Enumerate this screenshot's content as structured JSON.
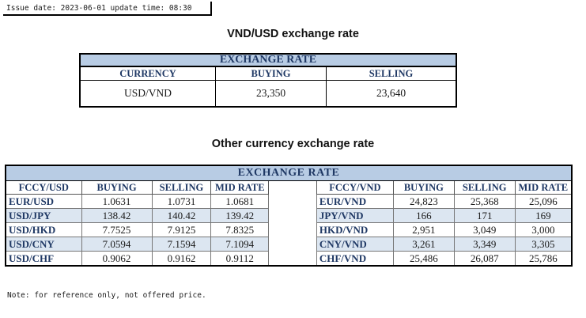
{
  "header": {
    "issue_text": "Issue date: 2023-06-01 update time: 08:30"
  },
  "vnd_usd": {
    "title": "VND/USD exchange rate",
    "table_header": "EXCHANGE RATE",
    "col_currency": "CURRENCY",
    "col_buying": "BUYING",
    "col_selling": "SELLING",
    "currency": "USD/VND",
    "buying": "23,350",
    "selling": "23,640"
  },
  "other": {
    "title": "Other currency exchange rate",
    "table_header": "EXCHANGE RATE",
    "left_columns": [
      "FCCY/USD",
      "BUYING",
      "SELLING",
      "MID RATE"
    ],
    "right_columns": [
      "FCCY/VND",
      "BUYING",
      "SELLING",
      "MID RATE"
    ],
    "rows": [
      {
        "left": [
          "EUR/USD",
          "1.0631",
          "1.0731",
          "1.0681"
        ],
        "right": [
          "EUR/VND",
          "24,823",
          "25,368",
          "25,096"
        ]
      },
      {
        "left": [
          "USD/JPY",
          "138.42",
          "140.42",
          "139.42"
        ],
        "right": [
          "JPY/VND",
          "166",
          "171",
          "169"
        ]
      },
      {
        "left": [
          "USD/HKD",
          "7.7525",
          "7.9125",
          "7.8325"
        ],
        "right": [
          "HKD/VND",
          "2,951",
          "3,049",
          "3,000"
        ]
      },
      {
        "left": [
          "USD/CNY",
          "7.0594",
          "7.1594",
          "7.1094"
        ],
        "right": [
          "CNY/VND",
          "3,261",
          "3,349",
          "3,305"
        ]
      },
      {
        "left": [
          "USD/CHF",
          "0.9062",
          "0.9162",
          "0.9112"
        ],
        "right": [
          "CHF/VND",
          "25,486",
          "26,087",
          "25,786"
        ]
      }
    ]
  },
  "footer": {
    "note": "Note: for reference only, not offered price."
  }
}
